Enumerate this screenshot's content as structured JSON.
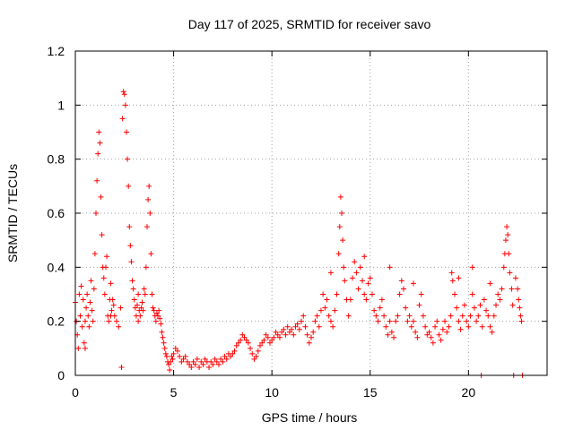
{
  "chart_data": {
    "type": "scatter",
    "title": "Day 117 of 2025, SRMTID for receiver savo",
    "xlabel": "GPS time / hours",
    "ylabel": "SRMTID / TECUs",
    "xlim": [
      0,
      24
    ],
    "ylim": [
      0,
      1.2
    ],
    "x_ticks": [
      0,
      5,
      10,
      15,
      20
    ],
    "x_tick_labels": [
      "0",
      "5",
      "10",
      "15",
      "20"
    ],
    "y_ticks": [
      0,
      0.2,
      0.4,
      0.6,
      0.8,
      1.0,
      1.2
    ],
    "y_tick_labels": [
      "0",
      "0.2",
      "0.4",
      "0.6",
      "0.8",
      "1",
      "1.2"
    ],
    "grid": true,
    "marker": "+",
    "color": "#ff0000",
    "series": [
      {
        "name": "SRMTID",
        "points": [
          [
            0.0,
            0.27
          ],
          [
            0.05,
            0.2
          ],
          [
            0.1,
            0.15
          ],
          [
            0.15,
            0.1
          ],
          [
            0.2,
            0.3
          ],
          [
            0.25,
            0.22
          ],
          [
            0.3,
            0.33
          ],
          [
            0.35,
            0.18
          ],
          [
            0.4,
            0.28
          ],
          [
            0.45,
            0.12
          ],
          [
            0.5,
            0.2
          ],
          [
            0.55,
            0.25
          ],
          [
            0.6,
            0.3
          ],
          [
            0.65,
            0.22
          ],
          [
            0.7,
            0.18
          ],
          [
            0.75,
            0.27
          ],
          [
            0.8,
            0.35
          ],
          [
            0.85,
            0.24
          ],
          [
            0.9,
            0.2
          ],
          [
            0.95,
            0.32
          ],
          [
            1.0,
            0.45
          ],
          [
            1.05,
            0.6
          ],
          [
            1.1,
            0.72
          ],
          [
            1.15,
            0.82
          ],
          [
            1.2,
            0.9
          ],
          [
            1.25,
            0.86
          ],
          [
            1.3,
            0.66
          ],
          [
            1.35,
            0.52
          ],
          [
            1.4,
            0.4
          ],
          [
            1.45,
            0.36
          ],
          [
            1.5,
            0.3
          ],
          [
            1.55,
            0.4
          ],
          [
            1.6,
            0.44
          ],
          [
            1.65,
            0.22
          ],
          [
            1.7,
            0.2
          ],
          [
            1.75,
            0.28
          ],
          [
            1.8,
            0.34
          ],
          [
            1.85,
            0.24
          ],
          [
            1.9,
            0.28
          ],
          [
            1.95,
            0.26
          ],
          [
            2.0,
            0.22
          ],
          [
            2.1,
            0.2
          ],
          [
            2.2,
            0.18
          ],
          [
            2.3,
            0.25
          ],
          [
            2.35,
            0.03
          ],
          [
            2.4,
            0.95
          ],
          [
            2.45,
            1.05
          ],
          [
            2.5,
            1.04
          ],
          [
            2.55,
            1.0
          ],
          [
            2.6,
            0.9
          ],
          [
            2.65,
            0.8
          ],
          [
            2.7,
            0.7
          ],
          [
            2.75,
            0.55
          ],
          [
            2.8,
            0.48
          ],
          [
            2.85,
            0.42
          ],
          [
            2.9,
            0.35
          ],
          [
            2.95,
            0.32
          ],
          [
            3.0,
            0.28
          ],
          [
            3.05,
            0.25
          ],
          [
            3.1,
            0.22
          ],
          [
            3.15,
            0.26
          ],
          [
            3.2,
            0.3
          ],
          [
            3.25,
            0.24
          ],
          [
            3.3,
            0.22
          ],
          [
            3.35,
            0.25
          ],
          [
            3.4,
            0.27
          ],
          [
            3.45,
            0.24
          ],
          [
            3.5,
            0.32
          ],
          [
            3.55,
            0.3
          ],
          [
            3.6,
            0.4
          ],
          [
            3.65,
            0.55
          ],
          [
            3.7,
            0.65
          ],
          [
            3.75,
            0.7
          ],
          [
            3.8,
            0.6
          ],
          [
            3.85,
            0.45
          ],
          [
            3.9,
            0.3
          ],
          [
            3.95,
            0.25
          ],
          [
            4.0,
            0.24
          ],
          [
            4.05,
            0.22
          ],
          [
            4.1,
            0.2
          ],
          [
            4.15,
            0.23
          ],
          [
            4.2,
            0.22
          ],
          [
            4.25,
            0.24
          ],
          [
            4.3,
            0.21
          ],
          [
            4.35,
            0.19
          ],
          [
            4.4,
            0.16
          ],
          [
            4.45,
            0.14
          ],
          [
            4.5,
            0.12
          ],
          [
            4.55,
            0.1
          ],
          [
            4.6,
            0.08
          ],
          [
            4.65,
            0.07
          ],
          [
            4.7,
            0.05
          ],
          [
            4.75,
            0.04
          ],
          [
            4.8,
            0.02
          ],
          [
            4.85,
            0.05
          ],
          [
            4.9,
            0.07
          ],
          [
            4.95,
            0.06
          ],
          [
            5.0,
            0.08
          ],
          [
            5.1,
            0.1
          ],
          [
            5.2,
            0.09
          ],
          [
            5.3,
            0.07
          ],
          [
            5.4,
            0.05
          ],
          [
            5.5,
            0.06
          ],
          [
            5.6,
            0.07
          ],
          [
            5.7,
            0.05
          ],
          [
            5.8,
            0.04
          ],
          [
            5.9,
            0.03
          ],
          [
            6.0,
            0.05
          ],
          [
            6.1,
            0.04
          ],
          [
            6.2,
            0.06
          ],
          [
            6.3,
            0.03
          ],
          [
            6.4,
            0.05
          ],
          [
            6.5,
            0.04
          ],
          [
            6.6,
            0.06
          ],
          [
            6.7,
            0.05
          ],
          [
            6.8,
            0.03
          ],
          [
            6.9,
            0.05
          ],
          [
            7.0,
            0.04
          ],
          [
            7.1,
            0.06
          ],
          [
            7.2,
            0.05
          ],
          [
            7.3,
            0.04
          ],
          [
            7.4,
            0.06
          ],
          [
            7.5,
            0.05
          ],
          [
            7.6,
            0.07
          ],
          [
            7.7,
            0.06
          ],
          [
            7.8,
            0.08
          ],
          [
            7.9,
            0.07
          ],
          [
            8.0,
            0.08
          ],
          [
            8.1,
            0.09
          ],
          [
            8.2,
            0.11
          ],
          [
            8.3,
            0.12
          ],
          [
            8.4,
            0.13
          ],
          [
            8.5,
            0.15
          ],
          [
            8.6,
            0.14
          ],
          [
            8.7,
            0.13
          ],
          [
            8.8,
            0.12
          ],
          [
            8.9,
            0.1
          ],
          [
            9.0,
            0.08
          ],
          [
            9.1,
            0.06
          ],
          [
            9.2,
            0.07
          ],
          [
            9.3,
            0.09
          ],
          [
            9.4,
            0.11
          ],
          [
            9.5,
            0.12
          ],
          [
            9.6,
            0.13
          ],
          [
            9.7,
            0.15
          ],
          [
            9.8,
            0.14
          ],
          [
            9.9,
            0.12
          ],
          [
            10.0,
            0.13
          ],
          [
            10.1,
            0.14
          ],
          [
            10.2,
            0.16
          ],
          [
            10.3,
            0.15
          ],
          [
            10.4,
            0.14
          ],
          [
            10.5,
            0.16
          ],
          [
            10.6,
            0.17
          ],
          [
            10.7,
            0.15
          ],
          [
            10.8,
            0.18
          ],
          [
            10.9,
            0.16
          ],
          [
            11.0,
            0.17
          ],
          [
            11.1,
            0.15
          ],
          [
            11.2,
            0.18
          ],
          [
            11.3,
            0.19
          ],
          [
            11.4,
            0.17
          ],
          [
            11.5,
            0.2
          ],
          [
            11.6,
            0.22
          ],
          [
            11.7,
            0.18
          ],
          [
            11.8,
            0.15
          ],
          [
            11.9,
            0.12
          ],
          [
            12.0,
            0.14
          ],
          [
            12.1,
            0.16
          ],
          [
            12.2,
            0.2
          ],
          [
            12.3,
            0.22
          ],
          [
            12.4,
            0.18
          ],
          [
            12.5,
            0.24
          ],
          [
            12.6,
            0.3
          ],
          [
            12.7,
            0.25
          ],
          [
            12.8,
            0.28
          ],
          [
            12.9,
            0.22
          ],
          [
            13.0,
            0.2
          ],
          [
            13.1,
            0.18
          ],
          [
            13.2,
            0.24
          ],
          [
            13.3,
            0.3
          ],
          [
            13.4,
            0.45
          ],
          [
            13.45,
            0.55
          ],
          [
            13.5,
            0.66
          ],
          [
            13.55,
            0.6
          ],
          [
            13.6,
            0.5
          ],
          [
            13.65,
            0.4
          ],
          [
            13.7,
            0.35
          ],
          [
            13.8,
            0.28
          ],
          [
            13.9,
            0.22
          ],
          [
            14.0,
            0.28
          ],
          [
            14.1,
            0.36
          ],
          [
            14.2,
            0.42
          ],
          [
            14.3,
            0.38
          ],
          [
            14.4,
            0.32
          ],
          [
            14.5,
            0.4
          ],
          [
            14.6,
            0.35
          ],
          [
            14.7,
            0.3
          ],
          [
            14.8,
            0.28
          ],
          [
            14.9,
            0.34
          ],
          [
            15.0,
            0.36
          ],
          [
            15.1,
            0.3
          ],
          [
            15.2,
            0.24
          ],
          [
            15.3,
            0.22
          ],
          [
            15.4,
            0.2
          ],
          [
            15.5,
            0.25
          ],
          [
            15.6,
            0.28
          ],
          [
            15.7,
            0.22
          ],
          [
            15.8,
            0.18
          ],
          [
            15.9,
            0.15
          ],
          [
            16.0,
            0.2
          ],
          [
            16.1,
            0.16
          ],
          [
            16.2,
            0.14
          ],
          [
            16.3,
            0.2
          ],
          [
            16.4,
            0.22
          ],
          [
            16.5,
            0.3
          ],
          [
            16.6,
            0.35
          ],
          [
            16.7,
            0.32
          ],
          [
            16.8,
            0.25
          ],
          [
            16.9,
            0.2
          ],
          [
            17.0,
            0.22
          ],
          [
            17.1,
            0.18
          ],
          [
            17.2,
            0.2
          ],
          [
            17.3,
            0.16
          ],
          [
            17.4,
            0.14
          ],
          [
            17.5,
            0.26
          ],
          [
            17.6,
            0.3
          ],
          [
            17.7,
            0.22
          ],
          [
            17.8,
            0.18
          ],
          [
            17.9,
            0.15
          ],
          [
            18.0,
            0.16
          ],
          [
            18.1,
            0.14
          ],
          [
            18.2,
            0.12
          ],
          [
            18.3,
            0.18
          ],
          [
            18.4,
            0.2
          ],
          [
            18.5,
            0.15
          ],
          [
            18.6,
            0.13
          ],
          [
            18.7,
            0.17
          ],
          [
            18.8,
            0.2
          ],
          [
            18.9,
            0.16
          ],
          [
            19.0,
            0.18
          ],
          [
            19.1,
            0.22
          ],
          [
            19.15,
            0.38
          ],
          [
            19.2,
            0.35
          ],
          [
            19.3,
            0.3
          ],
          [
            19.4,
            0.25
          ],
          [
            19.5,
            0.2
          ],
          [
            19.6,
            0.17
          ],
          [
            19.7,
            0.22
          ],
          [
            19.8,
            0.26
          ],
          [
            19.9,
            0.2
          ],
          [
            20.0,
            0.18
          ],
          [
            20.1,
            0.22
          ],
          [
            20.2,
            0.3
          ],
          [
            20.3,
            0.25
          ],
          [
            20.4,
            0.2
          ],
          [
            20.5,
            0.22
          ],
          [
            20.6,
            0.26
          ],
          [
            20.65,
            0.0
          ],
          [
            20.7,
            0.18
          ],
          [
            20.8,
            0.28
          ],
          [
            20.9,
            0.24
          ],
          [
            21.0,
            0.22
          ],
          [
            21.1,
            0.18
          ],
          [
            21.2,
            0.16
          ],
          [
            21.3,
            0.22
          ],
          [
            21.4,
            0.26
          ],
          [
            21.5,
            0.3
          ],
          [
            21.6,
            0.28
          ],
          [
            21.7,
            0.32
          ],
          [
            21.8,
            0.4
          ],
          [
            21.85,
            0.45
          ],
          [
            21.9,
            0.5
          ],
          [
            21.95,
            0.55
          ],
          [
            22.0,
            0.52
          ],
          [
            22.05,
            0.45
          ],
          [
            22.1,
            0.38
          ],
          [
            22.2,
            0.32
          ],
          [
            22.25,
            0.26
          ],
          [
            22.3,
            0.0
          ],
          [
            22.4,
            0.36
          ],
          [
            22.5,
            0.32
          ],
          [
            22.55,
            0.28
          ],
          [
            22.6,
            0.25
          ],
          [
            22.65,
            0.22
          ],
          [
            22.7,
            0.2
          ],
          [
            22.75,
            0.0
          ],
          [
            0.5,
            0.1
          ],
          [
            1.8,
            0.22
          ],
          [
            3.2,
            0.2
          ],
          [
            13.0,
            0.38
          ],
          [
            14.7,
            0.44
          ],
          [
            16.0,
            0.4
          ],
          [
            17.2,
            0.34
          ],
          [
            19.5,
            0.36
          ],
          [
            20.2,
            0.4
          ],
          [
            21.1,
            0.34
          ]
        ]
      }
    ]
  }
}
